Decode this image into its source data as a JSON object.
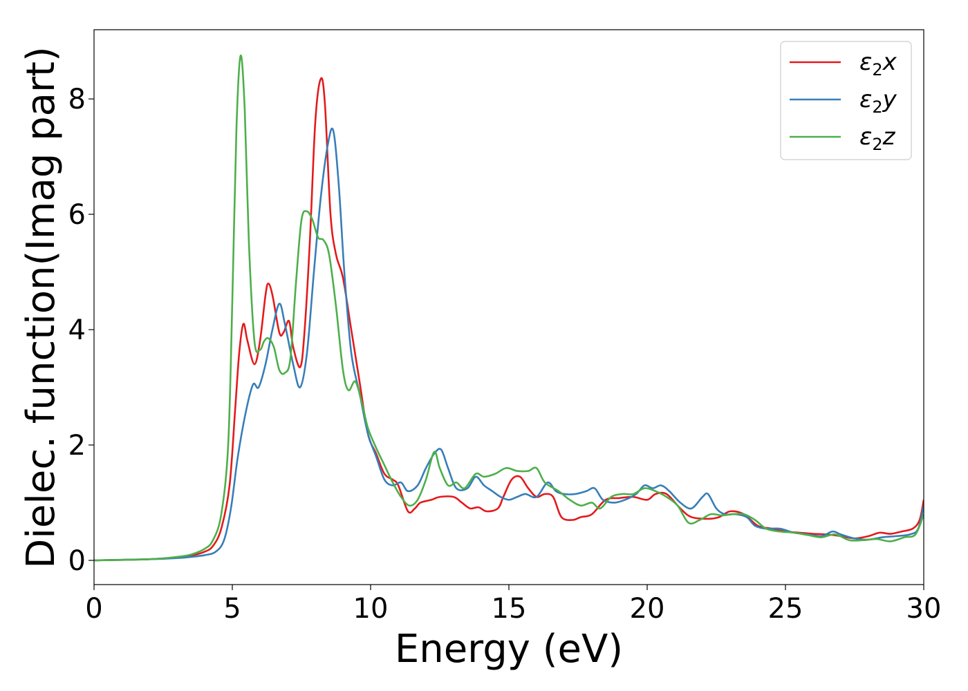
{
  "chart_data": {
    "type": "line",
    "xlabel": "Energy (eV)",
    "ylabel": "Dielec. function(Imag part)",
    "xlim": [
      0,
      30
    ],
    "ylim": [
      -0.42,
      9.2
    ],
    "xticks": [
      0,
      5,
      10,
      15,
      20,
      25,
      30
    ],
    "yticks": [
      0,
      2,
      4,
      6,
      8
    ],
    "grid": false,
    "legend_position": "top-right",
    "series": [
      {
        "name": "ε2x",
        "legend_symbol": "ε",
        "legend_sub": "2",
        "legend_suffix": "x",
        "color": "#e31a1c",
        "points": [
          [
            0,
            0
          ],
          [
            2,
            0.02
          ],
          [
            3,
            0.05
          ],
          [
            3.5,
            0.08
          ],
          [
            4,
            0.15
          ],
          [
            4.3,
            0.25
          ],
          [
            4.6,
            0.55
          ],
          [
            4.9,
            1.3
          ],
          [
            5.1,
            2.6
          ],
          [
            5.25,
            3.6
          ],
          [
            5.4,
            4.1
          ],
          [
            5.55,
            3.8
          ],
          [
            5.8,
            3.4
          ],
          [
            6.0,
            3.8
          ],
          [
            6.2,
            4.6
          ],
          [
            6.3,
            4.8
          ],
          [
            6.45,
            4.6
          ],
          [
            6.7,
            3.95
          ],
          [
            6.85,
            3.95
          ],
          [
            7.05,
            4.15
          ],
          [
            7.2,
            3.7
          ],
          [
            7.45,
            3.35
          ],
          [
            7.6,
            3.9
          ],
          [
            7.8,
            5.5
          ],
          [
            8.0,
            7.6
          ],
          [
            8.2,
            8.35
          ],
          [
            8.35,
            7.9
          ],
          [
            8.55,
            6.0
          ],
          [
            8.75,
            5.3
          ],
          [
            9.0,
            4.9
          ],
          [
            9.3,
            4.0
          ],
          [
            9.6,
            3.1
          ],
          [
            9.9,
            2.2
          ],
          [
            10.2,
            1.85
          ],
          [
            10.5,
            1.5
          ],
          [
            10.8,
            1.4
          ],
          [
            11.0,
            1.3
          ],
          [
            11.35,
            0.85
          ],
          [
            11.6,
            0.9
          ],
          [
            11.8,
            1.0
          ],
          [
            12.2,
            1.05
          ],
          [
            12.5,
            1.1
          ],
          [
            13.0,
            1.1
          ],
          [
            13.3,
            1.0
          ],
          [
            13.6,
            0.9
          ],
          [
            13.9,
            0.92
          ],
          [
            14.2,
            0.85
          ],
          [
            14.6,
            0.9
          ],
          [
            14.8,
            1.1
          ],
          [
            15.1,
            1.4
          ],
          [
            15.4,
            1.45
          ],
          [
            15.7,
            1.25
          ],
          [
            16.0,
            1.1
          ],
          [
            16.3,
            1.15
          ],
          [
            16.6,
            1.1
          ],
          [
            16.9,
            0.75
          ],
          [
            17.3,
            0.7
          ],
          [
            17.6,
            0.75
          ],
          [
            18.0,
            0.8
          ],
          [
            18.5,
            1.05
          ],
          [
            19.0,
            1.08
          ],
          [
            19.5,
            1.1
          ],
          [
            20.0,
            1.05
          ],
          [
            20.3,
            1.15
          ],
          [
            20.7,
            1.15
          ],
          [
            21.2,
            0.9
          ],
          [
            21.6,
            0.75
          ],
          [
            22.2,
            0.72
          ],
          [
            22.6,
            0.75
          ],
          [
            23.0,
            0.85
          ],
          [
            23.5,
            0.8
          ],
          [
            24.0,
            0.6
          ],
          [
            24.5,
            0.55
          ],
          [
            25.0,
            0.5
          ],
          [
            25.5,
            0.48
          ],
          [
            26.0,
            0.46
          ],
          [
            26.5,
            0.45
          ],
          [
            27.0,
            0.42
          ],
          [
            27.5,
            0.38
          ],
          [
            28.0,
            0.42
          ],
          [
            28.4,
            0.48
          ],
          [
            28.8,
            0.46
          ],
          [
            29.2,
            0.5
          ],
          [
            29.6,
            0.55
          ],
          [
            29.85,
            0.7
          ],
          [
            30.0,
            1.05
          ]
        ]
      },
      {
        "name": "ε2y",
        "legend_symbol": "ε",
        "legend_sub": "2",
        "legend_suffix": "y",
        "color": "#377eb8",
        "points": [
          [
            0,
            0
          ],
          [
            2,
            0.02
          ],
          [
            3,
            0.04
          ],
          [
            3.5,
            0.06
          ],
          [
            4,
            0.09
          ],
          [
            4.4,
            0.15
          ],
          [
            4.7,
            0.35
          ],
          [
            4.95,
            0.9
          ],
          [
            5.2,
            1.8
          ],
          [
            5.5,
            2.6
          ],
          [
            5.75,
            3.05
          ],
          [
            5.95,
            3.0
          ],
          [
            6.2,
            3.4
          ],
          [
            6.45,
            4.0
          ],
          [
            6.7,
            4.45
          ],
          [
            6.9,
            4.1
          ],
          [
            7.2,
            3.4
          ],
          [
            7.45,
            3.0
          ],
          [
            7.7,
            3.6
          ],
          [
            7.95,
            5.0
          ],
          [
            8.2,
            6.3
          ],
          [
            8.45,
            7.2
          ],
          [
            8.65,
            7.45
          ],
          [
            8.85,
            6.5
          ],
          [
            9.05,
            5.0
          ],
          [
            9.3,
            3.6
          ],
          [
            9.6,
            2.9
          ],
          [
            9.9,
            2.2
          ],
          [
            10.2,
            1.8
          ],
          [
            10.5,
            1.4
          ],
          [
            10.8,
            1.3
          ],
          [
            11.1,
            1.35
          ],
          [
            11.35,
            1.2
          ],
          [
            11.7,
            1.3
          ],
          [
            12.0,
            1.6
          ],
          [
            12.3,
            1.85
          ],
          [
            12.55,
            1.92
          ],
          [
            12.8,
            1.6
          ],
          [
            13.1,
            1.25
          ],
          [
            13.5,
            1.25
          ],
          [
            13.8,
            1.45
          ],
          [
            14.1,
            1.3
          ],
          [
            14.4,
            1.2
          ],
          [
            14.7,
            1.1
          ],
          [
            15.0,
            1.05
          ],
          [
            15.3,
            1.1
          ],
          [
            15.6,
            1.15
          ],
          [
            16.0,
            1.1
          ],
          [
            16.4,
            1.35
          ],
          [
            16.7,
            1.2
          ],
          [
            17.0,
            1.15
          ],
          [
            17.4,
            1.15
          ],
          [
            17.8,
            1.2
          ],
          [
            18.1,
            1.25
          ],
          [
            18.4,
            1.05
          ],
          [
            18.8,
            1.0
          ],
          [
            19.2,
            1.05
          ],
          [
            19.6,
            1.15
          ],
          [
            19.9,
            1.3
          ],
          [
            20.2,
            1.25
          ],
          [
            20.5,
            1.3
          ],
          [
            20.8,
            1.2
          ],
          [
            21.2,
            1.0
          ],
          [
            21.6,
            0.9
          ],
          [
            22.0,
            1.1
          ],
          [
            22.2,
            1.15
          ],
          [
            22.5,
            0.9
          ],
          [
            22.8,
            0.8
          ],
          [
            23.2,
            0.8
          ],
          [
            23.6,
            0.75
          ],
          [
            23.9,
            0.6
          ],
          [
            24.3,
            0.55
          ],
          [
            24.8,
            0.55
          ],
          [
            25.3,
            0.48
          ],
          [
            25.8,
            0.45
          ],
          [
            26.3,
            0.42
          ],
          [
            26.7,
            0.5
          ],
          [
            27.0,
            0.45
          ],
          [
            27.5,
            0.38
          ],
          [
            28.0,
            0.36
          ],
          [
            28.5,
            0.4
          ],
          [
            29.0,
            0.42
          ],
          [
            29.5,
            0.45
          ],
          [
            29.8,
            0.55
          ],
          [
            30.0,
            0.95
          ]
        ]
      },
      {
        "name": "ε2z",
        "legend_symbol": "ε",
        "legend_sub": "2",
        "legend_suffix": "z",
        "color": "#4daf4a",
        "points": [
          [
            0,
            0
          ],
          [
            2,
            0.02
          ],
          [
            3,
            0.06
          ],
          [
            3.5,
            0.1
          ],
          [
            4,
            0.2
          ],
          [
            4.3,
            0.35
          ],
          [
            4.6,
            0.8
          ],
          [
            4.85,
            2.0
          ],
          [
            5.0,
            4.5
          ],
          [
            5.15,
            7.5
          ],
          [
            5.3,
            8.75
          ],
          [
            5.45,
            7.8
          ],
          [
            5.6,
            5.5
          ],
          [
            5.8,
            3.8
          ],
          [
            6.0,
            3.65
          ],
          [
            6.15,
            3.8
          ],
          [
            6.3,
            3.85
          ],
          [
            6.5,
            3.7
          ],
          [
            6.7,
            3.3
          ],
          [
            6.9,
            3.25
          ],
          [
            7.1,
            3.5
          ],
          [
            7.3,
            4.8
          ],
          [
            7.5,
            5.9
          ],
          [
            7.7,
            6.05
          ],
          [
            7.9,
            5.9
          ],
          [
            8.1,
            5.6
          ],
          [
            8.3,
            5.55
          ],
          [
            8.5,
            5.3
          ],
          [
            8.75,
            4.4
          ],
          [
            9.0,
            3.3
          ],
          [
            9.2,
            2.95
          ],
          [
            9.45,
            3.1
          ],
          [
            9.7,
            2.7
          ],
          [
            9.9,
            2.3
          ],
          [
            10.2,
            1.95
          ],
          [
            10.5,
            1.65
          ],
          [
            10.8,
            1.35
          ],
          [
            11.1,
            1.1
          ],
          [
            11.4,
            0.95
          ],
          [
            11.7,
            1.05
          ],
          [
            12.0,
            1.4
          ],
          [
            12.3,
            1.88
          ],
          [
            12.5,
            1.6
          ],
          [
            12.8,
            1.3
          ],
          [
            13.1,
            1.35
          ],
          [
            13.4,
            1.25
          ],
          [
            13.8,
            1.5
          ],
          [
            14.1,
            1.45
          ],
          [
            14.5,
            1.5
          ],
          [
            14.9,
            1.6
          ],
          [
            15.3,
            1.55
          ],
          [
            15.7,
            1.55
          ],
          [
            16.0,
            1.6
          ],
          [
            16.3,
            1.35
          ],
          [
            16.8,
            1.2
          ],
          [
            17.2,
            1.05
          ],
          [
            17.6,
            0.95
          ],
          [
            18.0,
            1.0
          ],
          [
            18.3,
            0.9
          ],
          [
            18.7,
            1.1
          ],
          [
            19.1,
            1.15
          ],
          [
            19.5,
            1.15
          ],
          [
            19.9,
            1.25
          ],
          [
            20.3,
            1.2
          ],
          [
            20.7,
            1.1
          ],
          [
            21.1,
            0.95
          ],
          [
            21.5,
            0.65
          ],
          [
            21.9,
            0.7
          ],
          [
            22.3,
            0.8
          ],
          [
            22.7,
            0.78
          ],
          [
            23.1,
            0.8
          ],
          [
            23.5,
            0.8
          ],
          [
            23.9,
            0.7
          ],
          [
            24.3,
            0.55
          ],
          [
            24.8,
            0.5
          ],
          [
            25.3,
            0.48
          ],
          [
            25.8,
            0.44
          ],
          [
            26.3,
            0.4
          ],
          [
            26.8,
            0.45
          ],
          [
            27.3,
            0.35
          ],
          [
            27.8,
            0.35
          ],
          [
            28.3,
            0.37
          ],
          [
            28.8,
            0.33
          ],
          [
            29.3,
            0.4
          ],
          [
            29.7,
            0.45
          ],
          [
            30.0,
            0.8
          ]
        ]
      }
    ]
  }
}
